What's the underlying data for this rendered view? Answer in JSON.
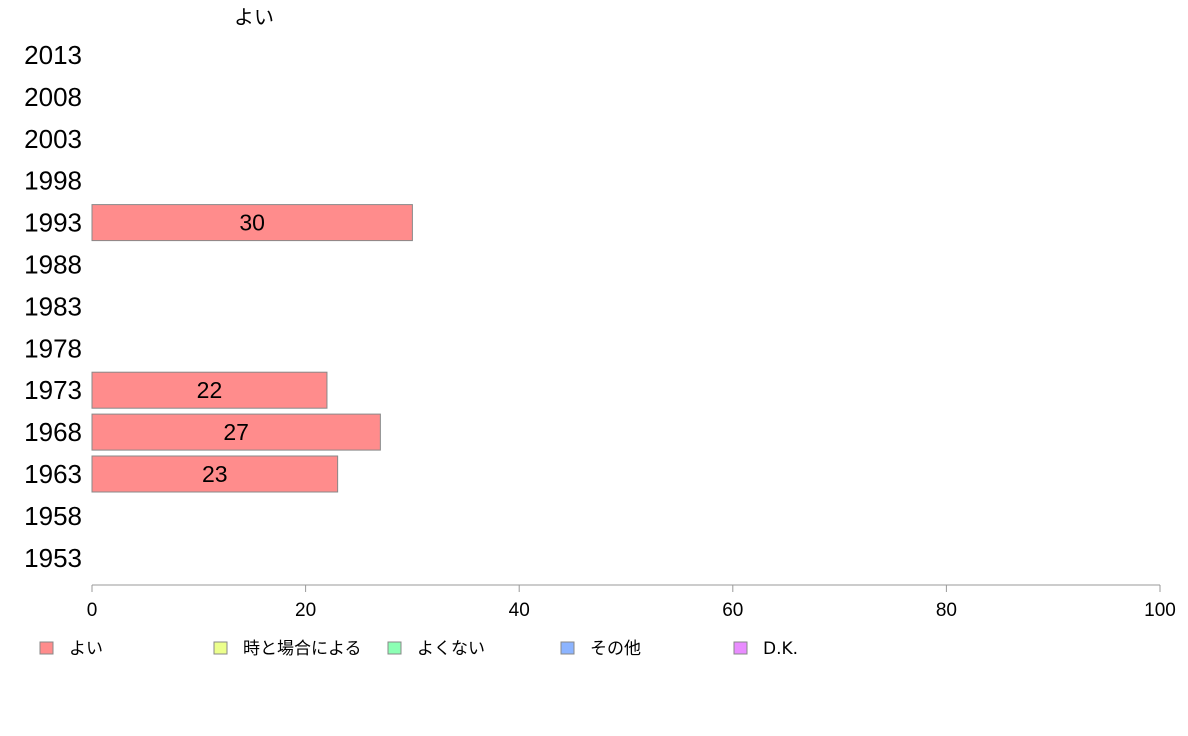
{
  "chart_data": {
    "type": "bar",
    "orientation": "horizontal",
    "title": "よい",
    "categories": [
      "2013",
      "2008",
      "2003",
      "1998",
      "1993",
      "1988",
      "1983",
      "1978",
      "1973",
      "1968",
      "1963",
      "1958",
      "1953"
    ],
    "series": [
      {
        "name": "よい",
        "color": "#ff8c8c",
        "values": [
          null,
          null,
          null,
          null,
          30,
          null,
          null,
          null,
          22,
          27,
          23,
          null,
          null
        ],
        "data_labels": [
          "",
          "",
          "",
          "",
          "30",
          "",
          "",
          "",
          "22",
          "27",
          "23",
          "",
          ""
        ]
      }
    ],
    "xlim": [
      0,
      100
    ],
    "x_ticks": [
      "0",
      "20",
      "40",
      "60",
      "80",
      "100"
    ],
    "grid": false,
    "legend_position": "bottom",
    "legend": [
      {
        "label": "よい",
        "color": "#ff8c8c"
      },
      {
        "label": "時と場合による",
        "color": "#ecff8c"
      },
      {
        "label": "よくない",
        "color": "#8cffb4"
      },
      {
        "label": "その他",
        "color": "#8cb4ff"
      },
      {
        "label": "D.K.",
        "color": "#e98cff"
      }
    ]
  }
}
